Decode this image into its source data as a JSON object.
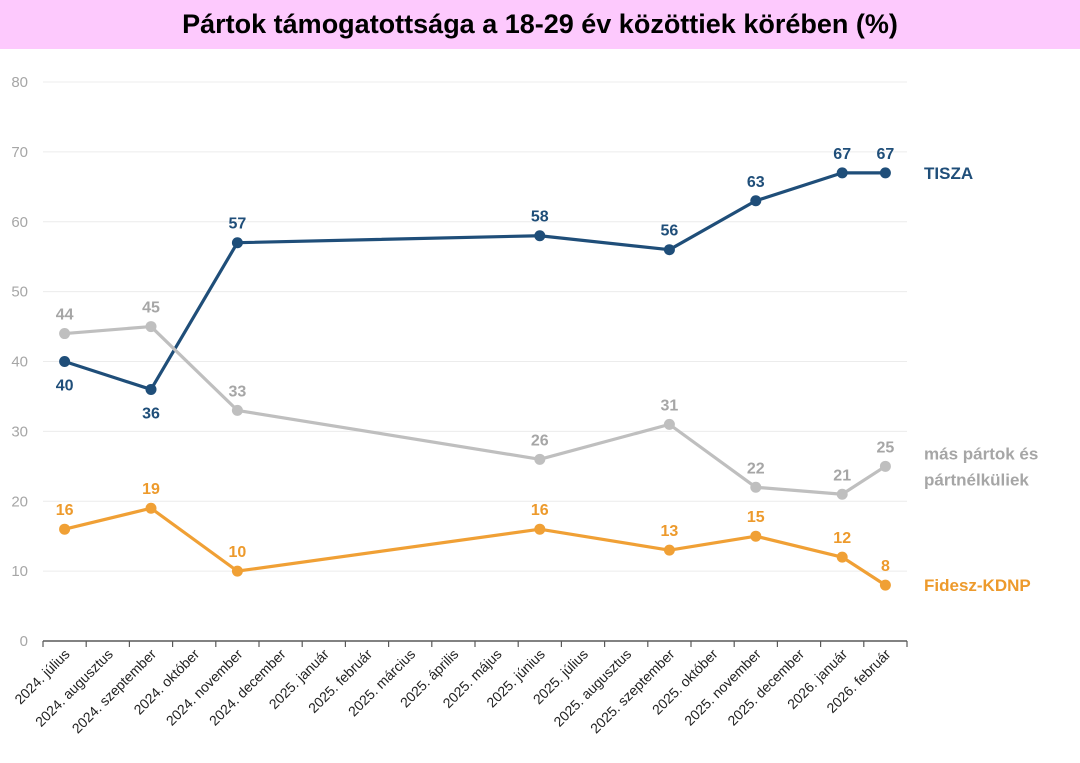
{
  "chart_data": {
    "type": "line",
    "title": "Pártok támogatottsága a 18-29 év közöttiek körében (%)",
    "xlabel": "",
    "ylabel": "",
    "ylim": [
      0,
      80
    ],
    "yticks": [
      0,
      10,
      20,
      30,
      40,
      50,
      60,
      70,
      80
    ],
    "grid": true,
    "legend_placement": "right (inline labels)",
    "categories": [
      "2024. július",
      "2024. augusztus",
      "2024. szeptember",
      "2024. október",
      "2024. november",
      "2024. december",
      "2025. január",
      "2025. február",
      "2025. március",
      "2025. április",
      "2025. május",
      "2025. június",
      "2025. július",
      "2025. augusztus",
      "2025. szeptember",
      "2025. október",
      "2025. november",
      "2025. december",
      "2026. január",
      "2026. február"
    ],
    "x": [
      "2024. július",
      "2024. szeptember",
      "2024. november",
      "2025. június",
      "2025. szeptember",
      "2025. november",
      "2026. január",
      "2026. február"
    ],
    "series": [
      {
        "name": "TISZA",
        "color": "#1f4e79",
        "values": [
          40,
          36,
          57,
          58,
          56,
          63,
          67,
          67
        ],
        "label_pos": [
          "below",
          "below",
          "above",
          "above",
          "above",
          "above",
          "above",
          "above"
        ]
      },
      {
        "name": "más pártok és pártnélküliek",
        "legend_lines": [
          "más pártok és",
          "pártnélküliek"
        ],
        "color": "#bfbfbf",
        "label_color": "#a6a6a6",
        "values": [
          44,
          45,
          33,
          26,
          31,
          22,
          21,
          25
        ],
        "label_pos": [
          "above",
          "above",
          "above",
          "above",
          "above",
          "above",
          "above",
          "above"
        ]
      },
      {
        "name": "Fidesz-KDNP",
        "color": "#f0a035",
        "label_color": "#ed9a2c",
        "values": [
          16,
          19,
          10,
          16,
          13,
          15,
          12,
          8
        ],
        "label_pos": [
          "above",
          "above",
          "above",
          "above",
          "above",
          "above",
          "above",
          "above"
        ]
      }
    ]
  }
}
